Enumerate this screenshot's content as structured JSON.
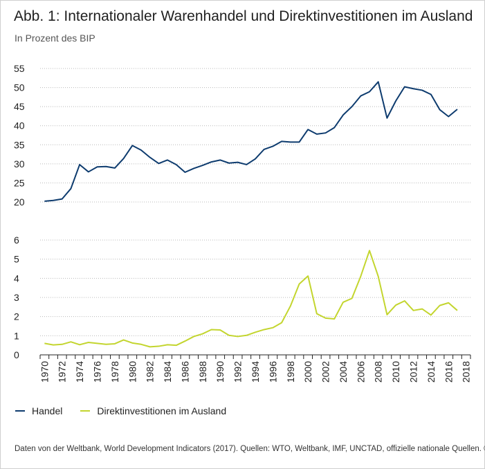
{
  "header": {
    "title": "Abb. 1: Internationaler Warenhandel und Direktinvestitionen im Ausland",
    "subtitle": "In Prozent des BIP"
  },
  "legend": [
    {
      "label": "Handel",
      "color": "#0d3b6e"
    },
    {
      "label": "Direktinvestitionen im Ausland",
      "color": "#c3d52e"
    }
  ],
  "source": "Daten von der Weltbank, World Development Indicators (2017). Quellen: WTO, Weltbank, IMF, UNCTAD, offizielle nationale Quellen.  © IAB",
  "chart_data": [
    {
      "type": "line",
      "title": "Abb. 1: Internationaler Warenhandel und Direktinvestitionen im Ausland",
      "ylabel": "In Prozent des BIP",
      "x": [
        1970,
        1971,
        1972,
        1973,
        1974,
        1975,
        1976,
        1977,
        1978,
        1979,
        1980,
        1981,
        1982,
        1983,
        1984,
        1985,
        1986,
        1987,
        1988,
        1989,
        1990,
        1991,
        1992,
        1993,
        1994,
        1995,
        1996,
        1997,
        1998,
        1999,
        2000,
        2001,
        2002,
        2003,
        2004,
        2005,
        2006,
        2007,
        2008,
        2009,
        2010,
        2011,
        2012,
        2013,
        2014,
        2015,
        2016,
        2017,
        2018
      ],
      "ylim": [
        20,
        55
      ],
      "yticks": [
        20,
        25,
        30,
        35,
        40,
        45,
        50,
        55
      ],
      "grid": true,
      "series": [
        {
          "name": "Handel",
          "color": "#0d3b6e",
          "values": [
            20.2,
            20.4,
            20.8,
            23.5,
            29.8,
            27.9,
            29.2,
            29.3,
            28.9,
            31.4,
            34.8,
            33.6,
            31.7,
            30.1,
            31.0,
            29.8,
            27.8,
            28.8,
            29.6,
            30.5,
            31.0,
            30.2,
            30.4,
            29.8,
            31.3,
            33.8,
            34.6,
            35.9,
            35.7,
            35.7,
            39.0,
            37.8,
            38.1,
            39.5,
            42.8,
            45.0,
            47.8,
            48.9,
            51.5,
            42.0,
            46.5,
            50.2,
            49.7,
            49.3,
            48.2,
            44.2,
            42.4,
            44.3,
            null
          ]
        }
      ]
    },
    {
      "type": "line",
      "x": [
        1970,
        1971,
        1972,
        1973,
        1974,
        1975,
        1976,
        1977,
        1978,
        1979,
        1980,
        1981,
        1982,
        1983,
        1984,
        1985,
        1986,
        1987,
        1988,
        1989,
        1990,
        1991,
        1992,
        1993,
        1994,
        1995,
        1996,
        1997,
        1998,
        1999,
        2000,
        2001,
        2002,
        2003,
        2004,
        2005,
        2006,
        2007,
        2008,
        2009,
        2010,
        2011,
        2012,
        2013,
        2014,
        2015,
        2016,
        2017,
        2018
      ],
      "ylim": [
        0,
        6
      ],
      "yticks": [
        0,
        1,
        2,
        3,
        4,
        5,
        6
      ],
      "xticks": [
        1970,
        1972,
        1974,
        1976,
        1978,
        1980,
        1982,
        1984,
        1986,
        1988,
        1990,
        1992,
        1994,
        1996,
        1998,
        2000,
        2002,
        2004,
        2006,
        2008,
        2010,
        2012,
        2014,
        2016,
        2018
      ],
      "grid": true,
      "series": [
        {
          "name": "Direktinvestitionen im Ausland",
          "color": "#c3d52e",
          "values": [
            0.6,
            0.52,
            0.55,
            0.68,
            0.53,
            0.65,
            0.6,
            0.55,
            0.58,
            0.78,
            0.62,
            0.55,
            0.42,
            0.45,
            0.53,
            0.5,
            0.72,
            0.96,
            1.1,
            1.32,
            1.3,
            1.02,
            0.96,
            1.02,
            1.18,
            1.32,
            1.42,
            1.68,
            2.55,
            3.7,
            4.12,
            2.15,
            1.92,
            1.88,
            2.75,
            2.95,
            4.1,
            5.45,
            4.1,
            2.1,
            2.6,
            2.82,
            2.32,
            2.4,
            2.08,
            2.58,
            2.72,
            2.32,
            null
          ]
        }
      ]
    }
  ]
}
